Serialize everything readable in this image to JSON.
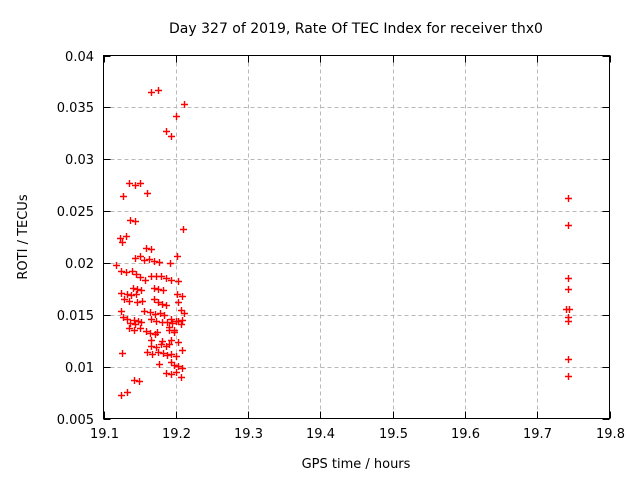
{
  "chart_data": {
    "type": "scatter",
    "title": "Day 327 of 2019, Rate Of TEC Index for receiver thx0",
    "xlabel": "GPS time / hours",
    "ylabel": "ROTI / TECUs",
    "xlim": [
      19.1,
      19.8
    ],
    "ylim": [
      0.005,
      0.04
    ],
    "x_ticks": [
      19.1,
      19.2,
      19.3,
      19.4,
      19.5,
      19.6,
      19.7,
      19.8
    ],
    "x_tick_labels": [
      "19.1",
      "19.2",
      "19.3",
      "19.4",
      "19.5",
      "19.6",
      "19.7",
      "19.8"
    ],
    "y_ticks": [
      0.005,
      0.01,
      0.015,
      0.02,
      0.025,
      0.03,
      0.035,
      0.04
    ],
    "y_tick_labels": [
      "0.005",
      "0.01",
      "0.015",
      "0.02",
      "0.025",
      "0.03",
      "0.035",
      "0.04"
    ],
    "grid": true,
    "legend": "none",
    "marker": "plus",
    "marker_color": "#ff0000",
    "grid_color": "#b8b8b8",
    "axis_color": "#000000",
    "background_color": "#ffffff",
    "points": [
      [
        19.166,
        0.0365
      ],
      [
        19.176,
        0.0367
      ],
      [
        19.211,
        0.0353
      ],
      [
        19.2,
        0.0342
      ],
      [
        19.186,
        0.0327
      ],
      [
        19.194,
        0.0322
      ],
      [
        19.135,
        0.0277
      ],
      [
        19.143,
        0.0275
      ],
      [
        19.151,
        0.0277
      ],
      [
        19.16,
        0.0267
      ],
      [
        19.127,
        0.0265
      ],
      [
        19.136,
        0.0241
      ],
      [
        19.144,
        0.024
      ],
      [
        19.21,
        0.0233
      ],
      [
        19.123,
        0.0224
      ],
      [
        19.125,
        0.022
      ],
      [
        19.131,
        0.0226
      ],
      [
        19.159,
        0.0214
      ],
      [
        19.166,
        0.0213
      ],
      [
        19.117,
        0.0198
      ],
      [
        19.143,
        0.0205
      ],
      [
        19.15,
        0.0207
      ],
      [
        19.156,
        0.0203
      ],
      [
        19.163,
        0.0204
      ],
      [
        19.17,
        0.0202
      ],
      [
        19.177,
        0.0201
      ],
      [
        19.192,
        0.02
      ],
      [
        19.201,
        0.0207
      ],
      [
        19.124,
        0.0192
      ],
      [
        19.131,
        0.0191
      ],
      [
        19.14,
        0.0192
      ],
      [
        19.145,
        0.0189
      ],
      [
        19.151,
        0.0186
      ],
      [
        19.158,
        0.0184
      ],
      [
        19.166,
        0.0187
      ],
      [
        19.173,
        0.0187
      ],
      [
        19.179,
        0.0187
      ],
      [
        19.186,
        0.0185
      ],
      [
        19.194,
        0.0184
      ],
      [
        19.203,
        0.0183
      ],
      [
        19.141,
        0.0176
      ],
      [
        19.147,
        0.0175
      ],
      [
        19.152,
        0.0174
      ],
      [
        19.17,
        0.0176
      ],
      [
        19.176,
        0.0175
      ],
      [
        19.183,
        0.0174
      ],
      [
        19.124,
        0.0171
      ],
      [
        19.132,
        0.017
      ],
      [
        19.138,
        0.0169
      ],
      [
        19.145,
        0.017
      ],
      [
        19.202,
        0.017
      ],
      [
        19.209,
        0.0168
      ],
      [
        19.128,
        0.0165
      ],
      [
        19.135,
        0.0163
      ],
      [
        19.147,
        0.0162
      ],
      [
        19.153,
        0.0163
      ],
      [
        19.17,
        0.0165
      ],
      [
        19.175,
        0.0162
      ],
      [
        19.181,
        0.016
      ],
      [
        19.187,
        0.0159
      ],
      [
        19.203,
        0.0162
      ],
      [
        19.124,
        0.0154
      ],
      [
        19.156,
        0.0154
      ],
      [
        19.164,
        0.0153
      ],
      [
        19.171,
        0.0151
      ],
      [
        19.178,
        0.0152
      ],
      [
        19.184,
        0.015
      ],
      [
        19.207,
        0.0155
      ],
      [
        19.211,
        0.0152
      ],
      [
        19.127,
        0.0148
      ],
      [
        19.133,
        0.0146
      ],
      [
        19.142,
        0.0145
      ],
      [
        19.148,
        0.0144
      ],
      [
        19.166,
        0.0146
      ],
      [
        19.173,
        0.0144
      ],
      [
        19.181,
        0.0143
      ],
      [
        19.193,
        0.0146
      ],
      [
        19.2,
        0.0144
      ],
      [
        19.207,
        0.0141
      ],
      [
        19.137,
        0.0142
      ],
      [
        19.144,
        0.0141
      ],
      [
        19.152,
        0.0143
      ],
      [
        19.188,
        0.0143
      ],
      [
        19.195,
        0.0142
      ],
      [
        19.203,
        0.0144
      ],
      [
        19.209,
        0.0145
      ],
      [
        19.135,
        0.0137
      ],
      [
        19.142,
        0.0135
      ],
      [
        19.151,
        0.0137
      ],
      [
        19.19,
        0.0138
      ],
      [
        19.197,
        0.0135
      ],
      [
        19.159,
        0.0134
      ],
      [
        19.174,
        0.0133
      ],
      [
        19.191,
        0.0135
      ],
      [
        19.198,
        0.0133
      ],
      [
        19.164,
        0.0132
      ],
      [
        19.171,
        0.0131
      ],
      [
        19.166,
        0.0126
      ],
      [
        19.181,
        0.0125
      ],
      [
        19.193,
        0.0126
      ],
      [
        19.203,
        0.0124
      ],
      [
        19.166,
        0.012
      ],
      [
        19.173,
        0.0119
      ],
      [
        19.18,
        0.0122
      ],
      [
        19.186,
        0.012
      ],
      [
        19.191,
        0.0122
      ],
      [
        19.208,
        0.0116
      ],
      [
        19.126,
        0.0113
      ],
      [
        19.16,
        0.0114
      ],
      [
        19.167,
        0.0112
      ],
      [
        19.175,
        0.0114
      ],
      [
        19.183,
        0.0113
      ],
      [
        19.188,
        0.0111
      ],
      [
        19.194,
        0.0112
      ],
      [
        19.2,
        0.011
      ],
      [
        19.177,
        0.0103
      ],
      [
        19.193,
        0.0104
      ],
      [
        19.197,
        0.0102
      ],
      [
        19.203,
        0.0101
      ],
      [
        19.208,
        0.0099
      ],
      [
        19.186,
        0.0094
      ],
      [
        19.193,
        0.0093
      ],
      [
        19.2,
        0.0095
      ],
      [
        19.207,
        0.009
      ],
      [
        19.142,
        0.0087
      ],
      [
        19.149,
        0.0086
      ],
      [
        19.124,
        0.0073
      ],
      [
        19.132,
        0.0076
      ],
      [
        19.742,
        0.0263
      ],
      [
        19.742,
        0.0237
      ],
      [
        19.742,
        0.0185
      ],
      [
        19.742,
        0.0175
      ],
      [
        19.74,
        0.0156
      ],
      [
        19.744,
        0.0156
      ],
      [
        19.742,
        0.0148
      ],
      [
        19.742,
        0.0144
      ],
      [
        19.742,
        0.0107
      ],
      [
        19.742,
        0.0091
      ]
    ]
  }
}
